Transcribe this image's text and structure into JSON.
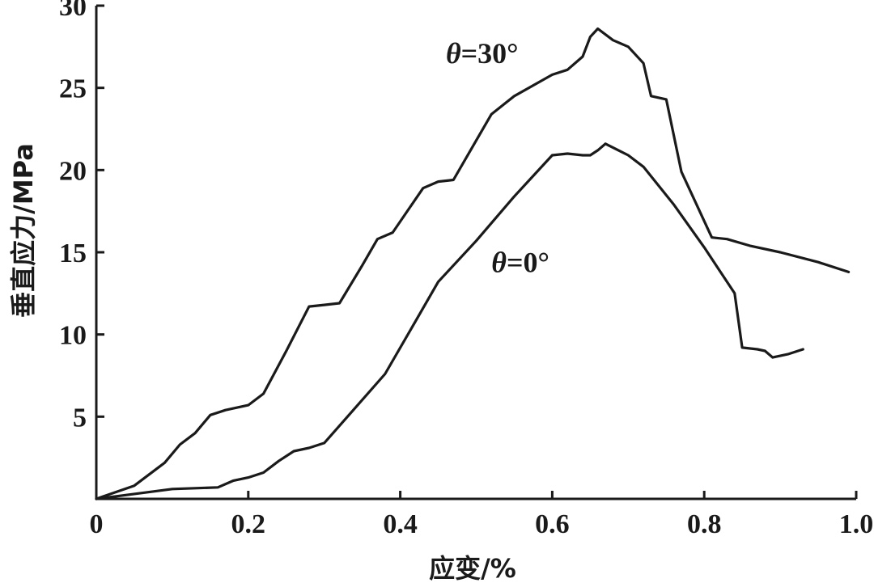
{
  "chart_data": {
    "type": "line",
    "xlabel": "应变/%",
    "ylabel": "垂直应力/MPa",
    "xlim": [
      0,
      1.0
    ],
    "ylim": [
      0,
      30
    ],
    "xticks": [
      "0",
      "0.2",
      "0.4",
      "0.6",
      "0.8",
      "1.0"
    ],
    "xtick_values": [
      0,
      0.2,
      0.4,
      0.6,
      0.8,
      1.0
    ],
    "yticks": [
      "5",
      "10",
      "15",
      "20",
      "25",
      "30"
    ],
    "ytick_values": [
      5,
      10,
      15,
      20,
      25,
      30
    ],
    "grid": false,
    "series": [
      {
        "name": "θ=30°",
        "label_symbol": "θ",
        "label_value": "=30°",
        "label_anchor": [
          0.46,
          26.5
        ],
        "x": [
          0,
          0.05,
          0.09,
          0.11,
          0.13,
          0.15,
          0.17,
          0.2,
          0.22,
          0.25,
          0.28,
          0.3,
          0.32,
          0.35,
          0.37,
          0.39,
          0.43,
          0.45,
          0.47,
          0.5,
          0.52,
          0.55,
          0.6,
          0.62,
          0.64,
          0.65,
          0.66,
          0.68,
          0.7,
          0.72,
          0.73,
          0.75,
          0.77,
          0.8,
          0.81,
          0.83,
          0.86,
          0.9,
          0.95,
          0.99
        ],
        "y": [
          0,
          0.8,
          2.2,
          3.3,
          4.0,
          5.1,
          5.4,
          5.7,
          6.4,
          9.0,
          11.7,
          11.8,
          11.9,
          14.2,
          15.8,
          16.2,
          18.9,
          19.3,
          19.4,
          21.8,
          23.4,
          24.5,
          25.8,
          26.1,
          26.9,
          28.1,
          28.6,
          27.9,
          27.5,
          26.5,
          24.5,
          24.3,
          19.9,
          16.9,
          15.9,
          15.8,
          15.4,
          15.0,
          14.4,
          13.8
        ]
      },
      {
        "name": "θ=0°",
        "label_symbol": "θ",
        "label_value": "=0°",
        "label_anchor": [
          0.52,
          13.8
        ],
        "x": [
          0,
          0.05,
          0.1,
          0.13,
          0.16,
          0.18,
          0.2,
          0.22,
          0.24,
          0.26,
          0.28,
          0.3,
          0.34,
          0.38,
          0.42,
          0.45,
          0.5,
          0.55,
          0.6,
          0.62,
          0.64,
          0.65,
          0.66,
          0.67,
          0.7,
          0.72,
          0.76,
          0.8,
          0.82,
          0.84,
          0.85,
          0.87,
          0.88,
          0.89,
          0.91,
          0.93
        ],
        "y": [
          0,
          0.3,
          0.6,
          0.65,
          0.7,
          1.1,
          1.3,
          1.6,
          2.3,
          2.9,
          3.1,
          3.4,
          5.5,
          7.6,
          10.8,
          13.2,
          15.7,
          18.4,
          20.9,
          21.0,
          20.9,
          20.9,
          21.2,
          21.6,
          20.9,
          20.2,
          17.9,
          15.3,
          13.9,
          12.5,
          9.2,
          9.1,
          9.0,
          8.6,
          8.8,
          9.1
        ]
      }
    ]
  }
}
